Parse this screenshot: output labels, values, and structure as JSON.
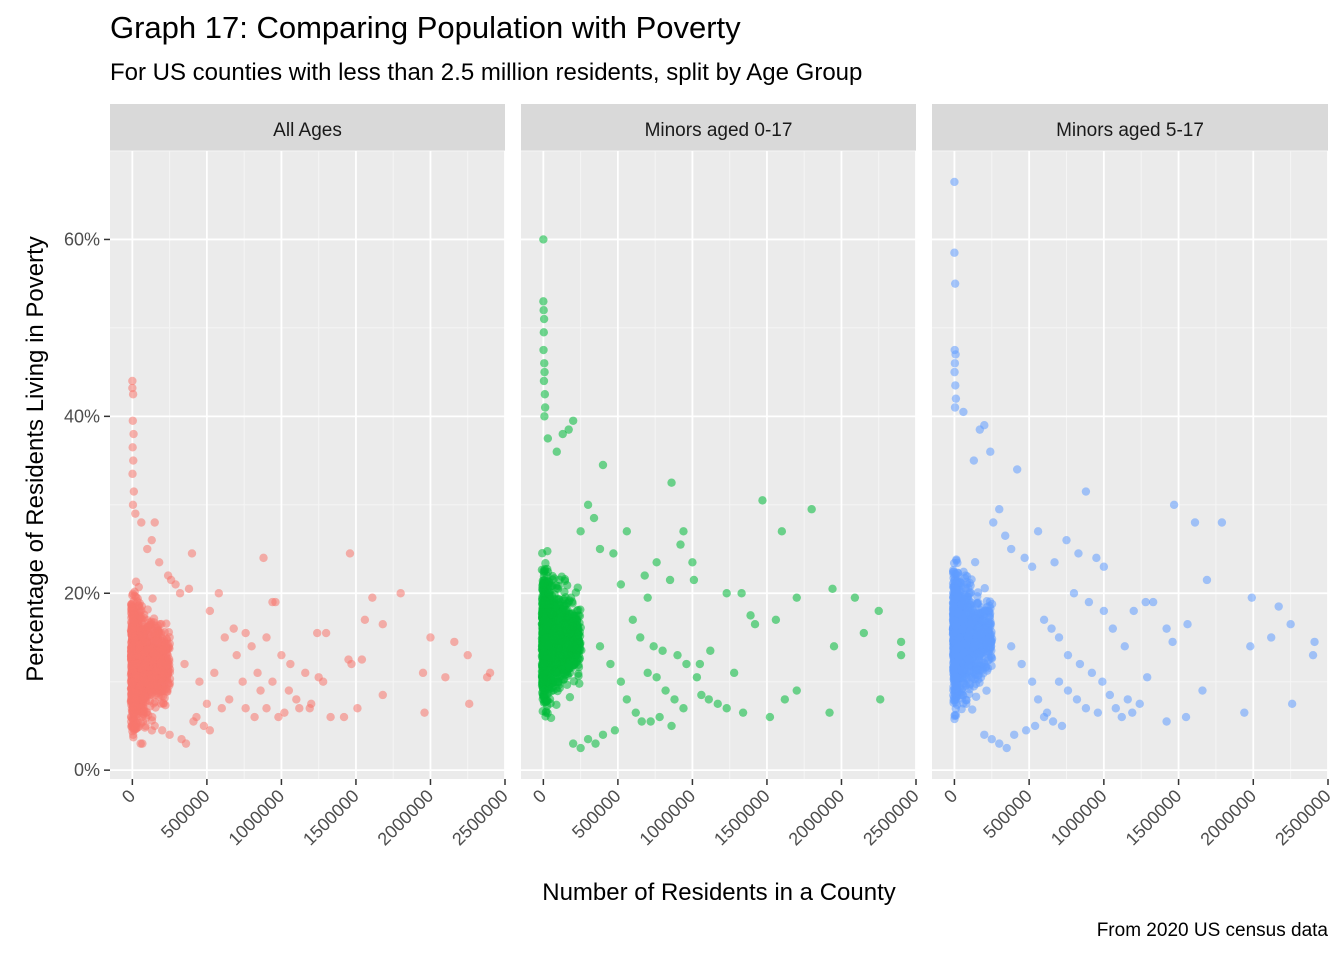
{
  "chart_data": {
    "type": "scatter",
    "title": "Graph 17: Comparing Population with Poverty",
    "subtitle": "For US counties with less than 2.5 million residents, split by Age Group",
    "caption": "From 2020 US census data",
    "xlabel": "Number of Residents in a County",
    "ylabel": "Percentage of Residents Living in Poverty",
    "xlim": [
      -150000,
      2500000
    ],
    "ylim": [
      -1,
      70
    ],
    "x_ticks": [
      0,
      500000,
      1000000,
      1500000,
      2000000,
      2500000
    ],
    "x_tick_labels": [
      "0",
      "500000",
      "1000000",
      "1500000",
      "2000000",
      "2500000"
    ],
    "y_ticks": [
      0,
      20,
      40,
      60
    ],
    "y_tick_labels": [
      "0%",
      "20%",
      "40%",
      "60%"
    ],
    "grid": true,
    "legend": "none",
    "point_alpha": 0.55,
    "facets": [
      {
        "label": "All Ages",
        "color": "#F8766D",
        "bulk_cluster": {
          "x_range": [
            0,
            250000
          ],
          "y_range": [
            3,
            30
          ],
          "y_center": 12
        },
        "points": [
          [
            0,
            44
          ],
          [
            0,
            43.2
          ],
          [
            5000,
            42.5
          ],
          [
            3000,
            39.5
          ],
          [
            8000,
            38
          ],
          [
            2000,
            36.5
          ],
          [
            6000,
            35
          ],
          [
            1000,
            33.5
          ],
          [
            10000,
            31.5
          ],
          [
            4000,
            30
          ],
          [
            20000,
            29
          ],
          [
            60000,
            28
          ],
          [
            150000,
            28
          ],
          [
            130000,
            26
          ],
          [
            100000,
            25
          ],
          [
            400000,
            24.5
          ],
          [
            880000,
            24
          ],
          [
            1460000,
            24.5
          ],
          [
            180000,
            23.5
          ],
          [
            240000,
            22
          ],
          [
            380000,
            20.5
          ],
          [
            260000,
            21.5
          ],
          [
            290000,
            21
          ],
          [
            320000,
            20
          ],
          [
            580000,
            20
          ],
          [
            940000,
            19
          ],
          [
            960000,
            19
          ],
          [
            1800000,
            20
          ],
          [
            1610000,
            19.5
          ],
          [
            1560000,
            17
          ],
          [
            1680000,
            16.5
          ],
          [
            520000,
            18
          ],
          [
            680000,
            16
          ],
          [
            760000,
            15.5
          ],
          [
            800000,
            14
          ],
          [
            2000000,
            15
          ],
          [
            2160000,
            14.5
          ],
          [
            2250000,
            13
          ],
          [
            620000,
            15
          ],
          [
            900000,
            15
          ],
          [
            1000000,
            13
          ],
          [
            1060000,
            12
          ],
          [
            1240000,
            15.5
          ],
          [
            1300000,
            15.5
          ],
          [
            1450000,
            12.5
          ],
          [
            1470000,
            12
          ],
          [
            1540000,
            12.5
          ],
          [
            1950000,
            11
          ],
          [
            2400000,
            11
          ],
          [
            2380000,
            10.5
          ],
          [
            2100000,
            10.5
          ],
          [
            1250000,
            10.5
          ],
          [
            1280000,
            10
          ],
          [
            1160000,
            11
          ],
          [
            700000,
            13
          ],
          [
            740000,
            10
          ],
          [
            840000,
            11
          ],
          [
            1050000,
            9
          ],
          [
            1100000,
            8
          ],
          [
            1200000,
            7.5
          ],
          [
            1190000,
            7
          ],
          [
            1120000,
            7
          ],
          [
            1680000,
            8.5
          ],
          [
            1510000,
            7
          ],
          [
            1420000,
            6
          ],
          [
            1330000,
            6
          ],
          [
            1960000,
            6.5
          ],
          [
            2260000,
            7.5
          ],
          [
            350000,
            12
          ],
          [
            450000,
            10
          ],
          [
            550000,
            11
          ],
          [
            600000,
            7
          ],
          [
            650000,
            8
          ],
          [
            500000,
            7.5
          ],
          [
            430000,
            6
          ],
          [
            480000,
            5
          ],
          [
            410000,
            5.5
          ],
          [
            520000,
            4.5
          ],
          [
            360000,
            3
          ],
          [
            330000,
            3.5
          ],
          [
            250000,
            4
          ],
          [
            200000,
            4.5
          ],
          [
            150000,
            5
          ],
          [
            900000,
            7
          ],
          [
            980000,
            6
          ],
          [
            1020000,
            6.5
          ],
          [
            860000,
            9
          ],
          [
            940000,
            10
          ],
          [
            760000,
            7
          ],
          [
            820000,
            6
          ]
        ]
      },
      {
        "label": "Minors aged 0-17",
        "color": "#00BA38",
        "bulk_cluster": {
          "x_range": [
            0,
            250000
          ],
          "y_range": [
            3,
            36
          ],
          "y_center": 15
        },
        "points": [
          [
            0,
            60
          ],
          [
            0,
            53
          ],
          [
            2000,
            52
          ],
          [
            5000,
            51
          ],
          [
            3000,
            49.5
          ],
          [
            1000,
            47.5
          ],
          [
            6000,
            46
          ],
          [
            8000,
            45
          ],
          [
            4000,
            44
          ],
          [
            10000,
            42.5
          ],
          [
            12000,
            41
          ],
          [
            7000,
            40
          ],
          [
            200000,
            39.5
          ],
          [
            170000,
            38.5
          ],
          [
            130000,
            38
          ],
          [
            30000,
            37.5
          ],
          [
            90000,
            36
          ],
          [
            400000,
            34.5
          ],
          [
            860000,
            32.5
          ],
          [
            1470000,
            30.5
          ],
          [
            1800000,
            29.5
          ],
          [
            1600000,
            27
          ],
          [
            560000,
            27
          ],
          [
            940000,
            27
          ],
          [
            920000,
            25.5
          ],
          [
            300000,
            30
          ],
          [
            340000,
            28.5
          ],
          [
            250000,
            27
          ],
          [
            470000,
            24.5
          ],
          [
            380000,
            25
          ],
          [
            760000,
            23.5
          ],
          [
            1000000,
            23.5
          ],
          [
            520000,
            21
          ],
          [
            680000,
            22
          ],
          [
            850000,
            21.5
          ],
          [
            1010000,
            21.5
          ],
          [
            700000,
            19.5
          ],
          [
            1230000,
            20
          ],
          [
            1330000,
            20
          ],
          [
            1940000,
            20.5
          ],
          [
            2090000,
            19.5
          ],
          [
            2250000,
            18
          ],
          [
            1700000,
            19.5
          ],
          [
            1390000,
            17.5
          ],
          [
            1420000,
            16.5
          ],
          [
            1560000,
            17
          ],
          [
            2400000,
            14.5
          ],
          [
            2150000,
            15.5
          ],
          [
            1950000,
            14
          ],
          [
            2400000,
            13
          ],
          [
            1280000,
            11
          ],
          [
            1050000,
            12
          ],
          [
            1120000,
            13.5
          ],
          [
            600000,
            17
          ],
          [
            650000,
            15
          ],
          [
            740000,
            14
          ],
          [
            800000,
            13.5
          ],
          [
            900000,
            13
          ],
          [
            960000,
            12
          ],
          [
            1030000,
            10.5
          ],
          [
            700000,
            11
          ],
          [
            760000,
            10.5
          ],
          [
            820000,
            9
          ],
          [
            880000,
            8
          ],
          [
            940000,
            7
          ],
          [
            1060000,
            8.5
          ],
          [
            1110000,
            8
          ],
          [
            1170000,
            7.5
          ],
          [
            1230000,
            7
          ],
          [
            1340000,
            6.5
          ],
          [
            1520000,
            6
          ],
          [
            1700000,
            9
          ],
          [
            1920000,
            6.5
          ],
          [
            2260000,
            8
          ],
          [
            1620000,
            8
          ],
          [
            380000,
            14
          ],
          [
            450000,
            12
          ],
          [
            520000,
            10
          ],
          [
            560000,
            8
          ],
          [
            620000,
            6.5
          ],
          [
            660000,
            5.5
          ],
          [
            480000,
            4.5
          ],
          [
            400000,
            4
          ],
          [
            350000,
            3
          ],
          [
            300000,
            3.5
          ],
          [
            250000,
            2.5
          ],
          [
            200000,
            3
          ],
          [
            720000,
            5.5
          ],
          [
            780000,
            6
          ],
          [
            860000,
            5
          ]
        ]
      },
      {
        "label": "Minors aged 5-17",
        "color": "#619CFF",
        "bulk_cluster": {
          "x_range": [
            0,
            250000
          ],
          "y_range": [
            2.5,
            36
          ],
          "y_center": 15
        },
        "points": [
          [
            0,
            66.5
          ],
          [
            0,
            58.5
          ],
          [
            5000,
            55
          ],
          [
            2000,
            47.5
          ],
          [
            8000,
            47
          ],
          [
            3000,
            46
          ],
          [
            1000,
            45
          ],
          [
            6000,
            43.5
          ],
          [
            10000,
            42
          ],
          [
            4000,
            41
          ],
          [
            60000,
            40.5
          ],
          [
            200000,
            39
          ],
          [
            170000,
            38.5
          ],
          [
            240000,
            36
          ],
          [
            130000,
            35
          ],
          [
            420000,
            34
          ],
          [
            880000,
            31.5
          ],
          [
            1470000,
            30
          ],
          [
            1610000,
            28
          ],
          [
            1790000,
            28
          ],
          [
            560000,
            27
          ],
          [
            750000,
            26
          ],
          [
            830000,
            24.5
          ],
          [
            950000,
            24
          ],
          [
            1000000,
            23
          ],
          [
            300000,
            29.5
          ],
          [
            260000,
            28
          ],
          [
            340000,
            26.5
          ],
          [
            380000,
            25
          ],
          [
            470000,
            24
          ],
          [
            520000,
            23
          ],
          [
            670000,
            23.5
          ],
          [
            1690000,
            21.5
          ],
          [
            1990000,
            19.5
          ],
          [
            2170000,
            18.5
          ],
          [
            2250000,
            16.5
          ],
          [
            2410000,
            14.5
          ],
          [
            2400000,
            13
          ],
          [
            1280000,
            19
          ],
          [
            1330000,
            19
          ],
          [
            1420000,
            16
          ],
          [
            1460000,
            14.5
          ],
          [
            1560000,
            16.5
          ],
          [
            1980000,
            14
          ],
          [
            2120000,
            15
          ],
          [
            1200000,
            18
          ],
          [
            1000000,
            18
          ],
          [
            900000,
            19
          ],
          [
            800000,
            20
          ],
          [
            1060000,
            16
          ],
          [
            1140000,
            14
          ],
          [
            1290000,
            10.5
          ],
          [
            600000,
            17
          ],
          [
            650000,
            16
          ],
          [
            700000,
            15
          ],
          [
            760000,
            13
          ],
          [
            840000,
            12
          ],
          [
            920000,
            11
          ],
          [
            990000,
            10
          ],
          [
            1040000,
            8.5
          ],
          [
            700000,
            10
          ],
          [
            760000,
            9
          ],
          [
            820000,
            8
          ],
          [
            880000,
            7
          ],
          [
            960000,
            6.5
          ],
          [
            1080000,
            7
          ],
          [
            1120000,
            6
          ],
          [
            1160000,
            8
          ],
          [
            1190000,
            6.5
          ],
          [
            1240000,
            7.5
          ],
          [
            1420000,
            5.5
          ],
          [
            1550000,
            6
          ],
          [
            1660000,
            9
          ],
          [
            1940000,
            6.5
          ],
          [
            2260000,
            7.5
          ],
          [
            380000,
            14
          ],
          [
            450000,
            12
          ],
          [
            520000,
            10
          ],
          [
            560000,
            8
          ],
          [
            620000,
            6.5
          ],
          [
            660000,
            5.5
          ],
          [
            480000,
            4.5
          ],
          [
            400000,
            4
          ],
          [
            350000,
            2.5
          ],
          [
            300000,
            3
          ],
          [
            250000,
            3.5
          ],
          [
            200000,
            4
          ],
          [
            540000,
            5
          ],
          [
            600000,
            6
          ],
          [
            720000,
            5
          ]
        ]
      }
    ]
  }
}
